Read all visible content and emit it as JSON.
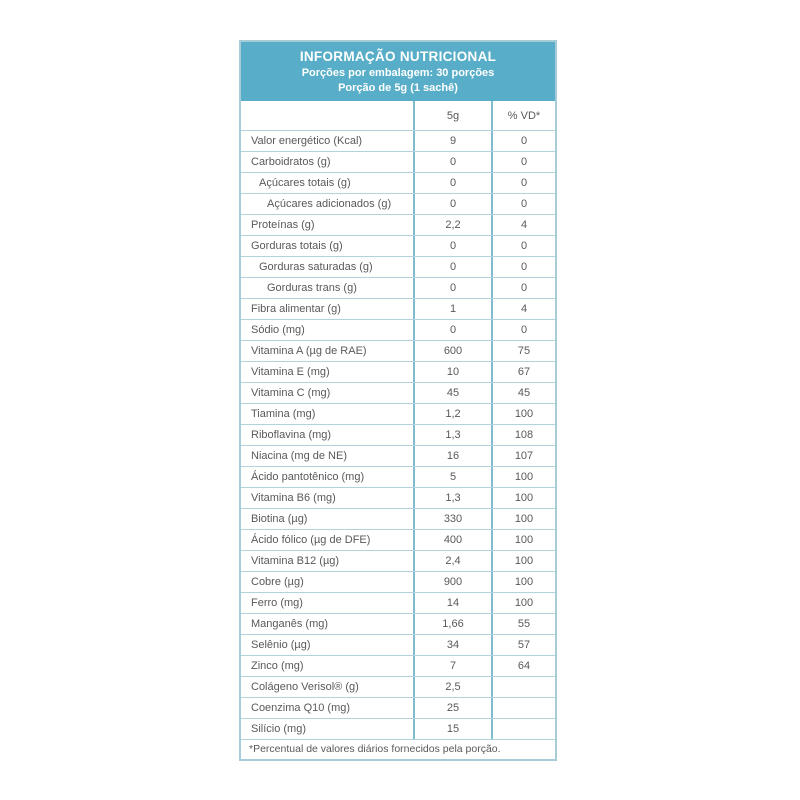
{
  "header": {
    "title": "INFORMAÇÃO NUTRICIONAL",
    "subtitle1": "Porções por embalagem: 30 porções",
    "subtitle2": "Porção de 5g (1 sachê)"
  },
  "table": {
    "columns": [
      "",
      "5g",
      "% VD*"
    ],
    "rows": [
      {
        "label": "Valor energético (Kcal)",
        "amount": "9",
        "vd": "0",
        "indent": 0
      },
      {
        "label": "Carboidratos (g)",
        "amount": "0",
        "vd": "0",
        "indent": 0
      },
      {
        "label": "Açúcares totais (g)",
        "amount": "0",
        "vd": "0",
        "indent": 1
      },
      {
        "label": "Açúcares adicionados (g)",
        "amount": "0",
        "vd": "0",
        "indent": 2
      },
      {
        "label": "Proteínas (g)",
        "amount": "2,2",
        "vd": "4",
        "indent": 0
      },
      {
        "label": "Gorduras totais (g)",
        "amount": "0",
        "vd": "0",
        "indent": 0
      },
      {
        "label": "Gorduras saturadas (g)",
        "amount": "0",
        "vd": "0",
        "indent": 1
      },
      {
        "label": "Gorduras trans (g)",
        "amount": "0",
        "vd": "0",
        "indent": 2
      },
      {
        "label": "Fibra alimentar (g)",
        "amount": "1",
        "vd": "4",
        "indent": 0
      },
      {
        "label": "Sódio (mg)",
        "amount": "0",
        "vd": "0",
        "indent": 0
      },
      {
        "label": "Vitamina A (µg de RAE)",
        "amount": "600",
        "vd": "75",
        "indent": 0
      },
      {
        "label": "Vitamina E (mg)",
        "amount": "10",
        "vd": "67",
        "indent": 0
      },
      {
        "label": "Vitamina C (mg)",
        "amount": "45",
        "vd": "45",
        "indent": 0
      },
      {
        "label": "Tiamina (mg)",
        "amount": "1,2",
        "vd": "100",
        "indent": 0
      },
      {
        "label": "Riboflavina (mg)",
        "amount": "1,3",
        "vd": "108",
        "indent": 0
      },
      {
        "label": "Niacina (mg de NE)",
        "amount": "16",
        "vd": "107",
        "indent": 0
      },
      {
        "label": "Ácido pantotênico (mg)",
        "amount": "5",
        "vd": "100",
        "indent": 0
      },
      {
        "label": "Vitamina B6 (mg)",
        "amount": "1,3",
        "vd": "100",
        "indent": 0
      },
      {
        "label": "Biotina (µg)",
        "amount": "330",
        "vd": "100",
        "indent": 0
      },
      {
        "label": "Ácido fólico (µg de DFE)",
        "amount": "400",
        "vd": "100",
        "indent": 0
      },
      {
        "label": "Vitamina B12 (µg)",
        "amount": "2,4",
        "vd": "100",
        "indent": 0
      },
      {
        "label": "Cobre (µg)",
        "amount": "900",
        "vd": "100",
        "indent": 0
      },
      {
        "label": "Ferro (mg)",
        "amount": "14",
        "vd": "100",
        "indent": 0
      },
      {
        "label": "Manganês (mg)",
        "amount": "1,66",
        "vd": "55",
        "indent": 0
      },
      {
        "label": "Selênio (µg)",
        "amount": "34",
        "vd": "57",
        "indent": 0
      },
      {
        "label": "Zinco (mg)",
        "amount": "7",
        "vd": "64",
        "indent": 0
      },
      {
        "label": "Colágeno Verisol® (g)",
        "amount": "2,5",
        "vd": "",
        "indent": 0
      },
      {
        "label": "Coenzima Q10 (mg)",
        "amount": "25",
        "vd": "",
        "indent": 0
      },
      {
        "label": "Silício (mg)",
        "amount": "15",
        "vd": "",
        "indent": 0
      }
    ],
    "footnote": "*Percentual de valores diários fornecidos pela porção."
  },
  "colors": {
    "header_bg": "#58AEC8",
    "header_text": "#FFFFFF",
    "border_outer": "#A6CCD8",
    "border_vertical": "#7EBBCE",
    "border_horizontal": "#B2D3DC",
    "text": "#595959"
  }
}
